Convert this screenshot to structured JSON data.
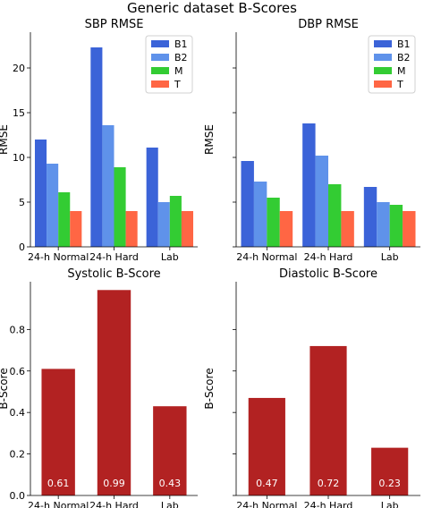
{
  "figure_title": "Generic dataset B-Scores",
  "colors": {
    "B1": "#3b63d8",
    "B2": "#5f92ea",
    "M": "#33cc33",
    "T": "#ff6644",
    "bscore": "#b22222"
  },
  "chart_data": [
    {
      "type": "bar",
      "title": "SBP RMSE",
      "ylabel": "RMSE",
      "categories": [
        "24-h Normal",
        "24-h Hard",
        "Lab"
      ],
      "series": [
        {
          "name": "B1",
          "values": [
            12.0,
            22.3,
            11.1
          ]
        },
        {
          "name": "B2",
          "values": [
            9.3,
            13.6,
            5.0
          ]
        },
        {
          "name": "M",
          "values": [
            6.1,
            8.9,
            5.7
          ]
        },
        {
          "name": "T",
          "values": [
            4.0,
            4.0,
            4.0
          ]
        }
      ],
      "ylim": [
        0,
        24
      ],
      "yticks": [
        0,
        5,
        10,
        15,
        20
      ],
      "legend": "top-right"
    },
    {
      "type": "bar",
      "title": "DBP RMSE",
      "ylabel": "RMSE",
      "categories": [
        "24-h Normal",
        "24-h Hard",
        "Lab"
      ],
      "series": [
        {
          "name": "B1",
          "values": [
            9.6,
            13.8,
            6.7
          ]
        },
        {
          "name": "B2",
          "values": [
            7.3,
            10.2,
            5.0
          ]
        },
        {
          "name": "M",
          "values": [
            5.5,
            7.0,
            4.7
          ]
        },
        {
          "name": "T",
          "values": [
            4.0,
            4.0,
            4.0
          ]
        }
      ],
      "ylim": [
        0,
        24
      ],
      "yticks": [],
      "legend": "top-right"
    },
    {
      "type": "bar",
      "title": "Systolic B-Score",
      "ylabel": "B-Score",
      "categories": [
        "24-h Normal",
        "24-h Hard",
        "Lab"
      ],
      "values": [
        0.61,
        0.99,
        0.43
      ],
      "data_labels": [
        "0.61",
        "0.99",
        "0.43"
      ],
      "ylim": [
        0,
        1.03
      ],
      "yticks": [
        0.0,
        0.2,
        0.4,
        0.6,
        0.8
      ]
    },
    {
      "type": "bar",
      "title": "Diastolic B-Score",
      "ylabel": "B-Score",
      "categories": [
        "24-h Normal",
        "24-h Hard",
        "Lab"
      ],
      "values": [
        0.47,
        0.72,
        0.23
      ],
      "data_labels": [
        "0.47",
        "0.72",
        "0.23"
      ],
      "ylim": [
        0,
        1.03
      ],
      "yticks": []
    }
  ]
}
